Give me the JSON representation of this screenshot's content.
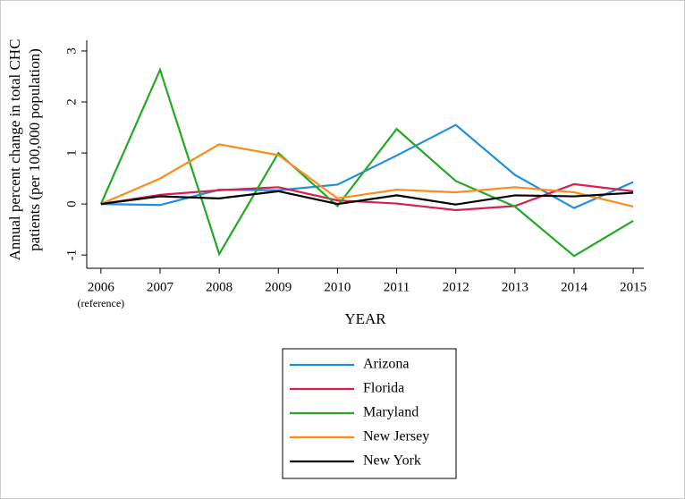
{
  "chart_data": {
    "type": "line",
    "ylabel": [
      "Annual percent change in total CHC",
      "patients (per 100,000 population)"
    ],
    "xlabel": "YEAR",
    "x": [
      2006,
      2007,
      2008,
      2009,
      2010,
      2011,
      2012,
      2013,
      2014,
      2015
    ],
    "xlim": [
      2005.76,
      2015.18
    ],
    "xticks": [
      2006,
      2007,
      2008,
      2009,
      2010,
      2011,
      2012,
      2013,
      2014,
      2015
    ],
    "annotations": [
      {
        "text": "(reference)",
        "x": 2006
      }
    ],
    "ylim": [
      -1.26,
      3.21
    ],
    "yticks": [
      -1,
      0,
      1,
      2,
      3
    ],
    "legend": "bottom",
    "series": [
      {
        "name": "Arizona",
        "color": "#1f8fe0",
        "values": [
          0,
          -0.02,
          0.28,
          0.27,
          0.38,
          0.95,
          1.55,
          0.57,
          -0.08,
          0.43
        ]
      },
      {
        "name": "Florida",
        "color": "#d6204f",
        "values": [
          0,
          0.18,
          0.27,
          0.33,
          0.07,
          0.01,
          -0.12,
          -0.04,
          0.39,
          0.25
        ]
      },
      {
        "name": "Maryland",
        "color": "#22aa22",
        "values": [
          0,
          2.63,
          -0.98,
          1.0,
          -0.04,
          1.47,
          0.45,
          -0.05,
          -1.02,
          -0.33
        ]
      },
      {
        "name": "New Jersey",
        "color": "#ff8c1a",
        "values": [
          0,
          0.5,
          1.17,
          0.96,
          0.11,
          0.28,
          0.23,
          0.33,
          0.23,
          -0.05
        ]
      },
      {
        "name": "New York",
        "color": "#000000",
        "values": [
          0,
          0.15,
          0.11,
          0.25,
          0.0,
          0.17,
          -0.01,
          0.17,
          0.15,
          0.22
        ]
      }
    ]
  }
}
